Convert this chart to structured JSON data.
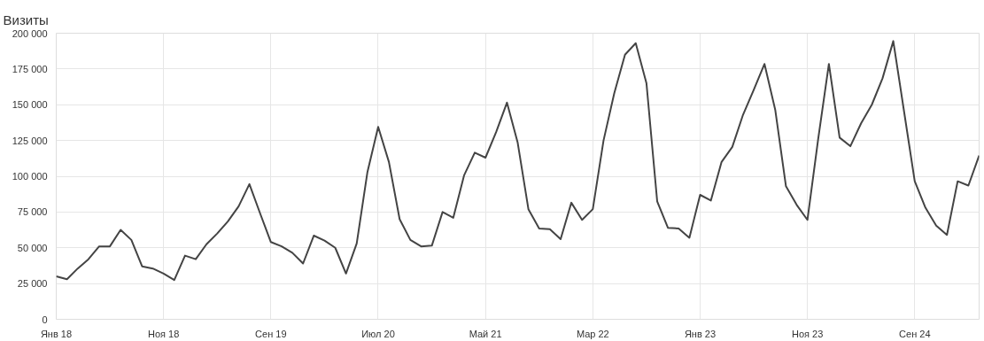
{
  "chart_data": {
    "type": "line",
    "title": "Визиты",
    "x": [
      "2018-01",
      "2018-02",
      "2018-03",
      "2018-04",
      "2018-05",
      "2018-06",
      "2018-07",
      "2018-08",
      "2018-09",
      "2018-10",
      "2018-11",
      "2018-12",
      "2019-01",
      "2019-02",
      "2019-03",
      "2019-04",
      "2019-05",
      "2019-06",
      "2019-07",
      "2019-08",
      "2019-09",
      "2019-10",
      "2019-11",
      "2019-12",
      "2020-01",
      "2020-02",
      "2020-03",
      "2020-04",
      "2020-05",
      "2020-06",
      "2020-07",
      "2020-08",
      "2020-09",
      "2020-10",
      "2020-11",
      "2020-12",
      "2021-01",
      "2021-02",
      "2021-03",
      "2021-04",
      "2021-05",
      "2021-06",
      "2021-07",
      "2021-08",
      "2021-09",
      "2021-10",
      "2021-11",
      "2021-12",
      "2022-01",
      "2022-02",
      "2022-03",
      "2022-04",
      "2022-05",
      "2022-06",
      "2022-07",
      "2022-08",
      "2022-09",
      "2022-10",
      "2022-11",
      "2022-12",
      "2023-01",
      "2023-02",
      "2023-03",
      "2023-04",
      "2023-05",
      "2023-06",
      "2023-07",
      "2023-08",
      "2023-09",
      "2023-10",
      "2023-11",
      "2023-12",
      "2024-01",
      "2024-02",
      "2024-03",
      "2024-04",
      "2024-05",
      "2024-06",
      "2024-07",
      "2024-08",
      "2024-09",
      "2024-10",
      "2024-11",
      "2024-12",
      "2025-01",
      "2025-02",
      "2025-03"
    ],
    "series": [
      {
        "color": "#444444",
        "values": [
          30000,
          28000,
          35500,
          42000,
          51000,
          51000,
          62500,
          55500,
          37000,
          35500,
          32000,
          27500,
          44500,
          42000,
          52500,
          60000,
          68500,
          79000,
          94500,
          74000,
          54000,
          51000,
          46500,
          39000,
          58500,
          55000,
          50000,
          32000,
          53000,
          103000,
          134500,
          110000,
          70000,
          55500,
          51000,
          51500,
          75000,
          71000,
          100500,
          116500,
          113000,
          131000,
          151500,
          123500,
          77000,
          63500,
          63000,
          56000,
          81500,
          69500,
          77000,
          125000,
          158000,
          185000,
          193000,
          165000,
          82500,
          64000,
          63500,
          57000,
          87000,
          83000,
          110000,
          120500,
          143000,
          160500,
          178500,
          146500,
          93000,
          80000,
          69500,
          126000,
          178500,
          127000,
          121000,
          137000,
          150000,
          168500,
          194500,
          145500,
          96500,
          78000,
          65500,
          59000,
          96500,
          93500,
          114500
        ]
      }
    ],
    "xlim": [
      "2018-01",
      "2025-03"
    ],
    "xticks": [
      {
        "value": "2018-01",
        "label": "Янв 18"
      },
      {
        "value": "2018-11",
        "label": "Ноя 18"
      },
      {
        "value": "2019-09",
        "label": "Сен 19"
      },
      {
        "value": "2020-07",
        "label": "Июл 20"
      },
      {
        "value": "2021-05",
        "label": "Май 21"
      },
      {
        "value": "2022-03",
        "label": "Мар 22"
      },
      {
        "value": "2023-01",
        "label": "Янв 23"
      },
      {
        "value": "2023-11",
        "label": "Ноя 23"
      },
      {
        "value": "2024-09",
        "label": "Сен 24"
      }
    ],
    "ylim": [
      0,
      200000
    ],
    "yticks": [
      {
        "value": 0,
        "label": "0"
      },
      {
        "value": 25000,
        "label": "25 000"
      },
      {
        "value": 50000,
        "label": "50 000"
      },
      {
        "value": 75000,
        "label": "75 000"
      },
      {
        "value": 100000,
        "label": "100 000"
      },
      {
        "value": 125000,
        "label": "125 000"
      },
      {
        "value": 150000,
        "label": "150 000"
      },
      {
        "value": 175000,
        "label": "175 000"
      },
      {
        "value": 200000,
        "label": "200 000"
      }
    ],
    "grid": true,
    "marker": "none",
    "line_style": "solid"
  }
}
